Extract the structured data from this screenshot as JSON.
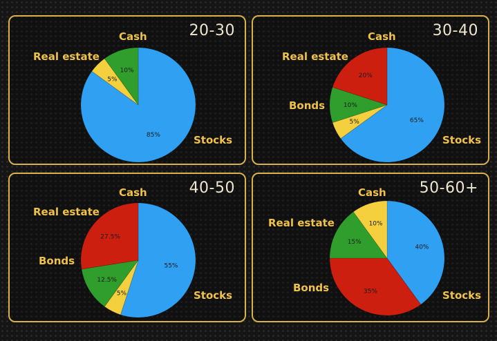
{
  "chart_data": [
    {
      "type": "pie",
      "title": "20-30",
      "categories": [
        "Stocks",
        "Cash",
        "Real estate"
      ],
      "values": [
        85,
        5,
        10
      ],
      "value_labels": [
        "85%",
        "5%",
        "10%"
      ],
      "colors": [
        "#2fa0f2",
        "#f4d03f",
        "#2f9e2c"
      ]
    },
    {
      "type": "pie",
      "title": "30-40",
      "categories": [
        "Stocks",
        "Cash",
        "Real estate",
        "Bonds"
      ],
      "values": [
        65,
        5,
        10,
        20
      ],
      "value_labels": [
        "65%",
        "5%",
        "10%",
        "20%"
      ],
      "colors": [
        "#2fa0f2",
        "#f4d03f",
        "#2f9e2c",
        "#cc1f10"
      ]
    },
    {
      "type": "pie",
      "title": "40-50",
      "categories": [
        "Stocks",
        "Cash",
        "Real estate",
        "Bonds"
      ],
      "values": [
        55,
        5,
        12.5,
        27.5
      ],
      "value_labels": [
        "55%",
        "5%",
        "12.5%",
        "27.5%"
      ],
      "colors": [
        "#2fa0f2",
        "#f4d03f",
        "#2f9e2c",
        "#cc1f10"
      ]
    },
    {
      "type": "pie",
      "title": "50-60+",
      "categories": [
        "Stocks",
        "Bonds",
        "Real estate",
        "Cash"
      ],
      "values": [
        40,
        35,
        15,
        10
      ],
      "value_labels": [
        "40%",
        "35%",
        "15%",
        "10%"
      ],
      "colors": [
        "#2fa0f2",
        "#cc1f10",
        "#2f9e2c",
        "#f4d03f"
      ]
    }
  ]
}
